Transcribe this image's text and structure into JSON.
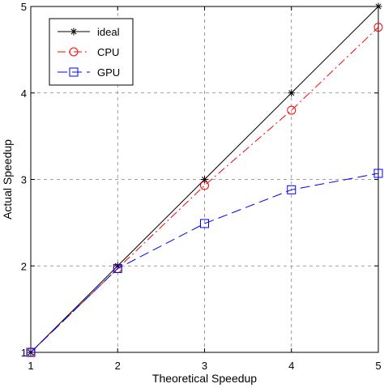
{
  "chart_data": {
    "type": "line",
    "title": "",
    "xlabel": "Theoretical Speedup",
    "ylabel": "Actual Speedup",
    "xlim": [
      1,
      5
    ],
    "ylim": [
      1,
      5
    ],
    "x_ticks": [
      1,
      2,
      3,
      4,
      5
    ],
    "y_ticks": [
      1,
      2,
      3,
      4,
      5
    ],
    "grid": true,
    "legend_position": "top-left",
    "x": [
      1,
      2,
      3,
      4,
      5
    ],
    "series": [
      {
        "name": "ideal",
        "values": [
          1,
          2,
          3,
          4,
          5
        ],
        "color": "#000000",
        "marker": "asterisk",
        "line_style": "solid"
      },
      {
        "name": "CPU",
        "values": [
          1,
          1.97,
          2.93,
          3.8,
          4.76
        ],
        "color": "#ff0000",
        "marker": "circle",
        "line_style": "dash-dot"
      },
      {
        "name": "GPU",
        "values": [
          1,
          1.97,
          2.49,
          2.88,
          3.07
        ],
        "color": "#0000ff",
        "marker": "square",
        "line_style": "dashed"
      }
    ]
  }
}
